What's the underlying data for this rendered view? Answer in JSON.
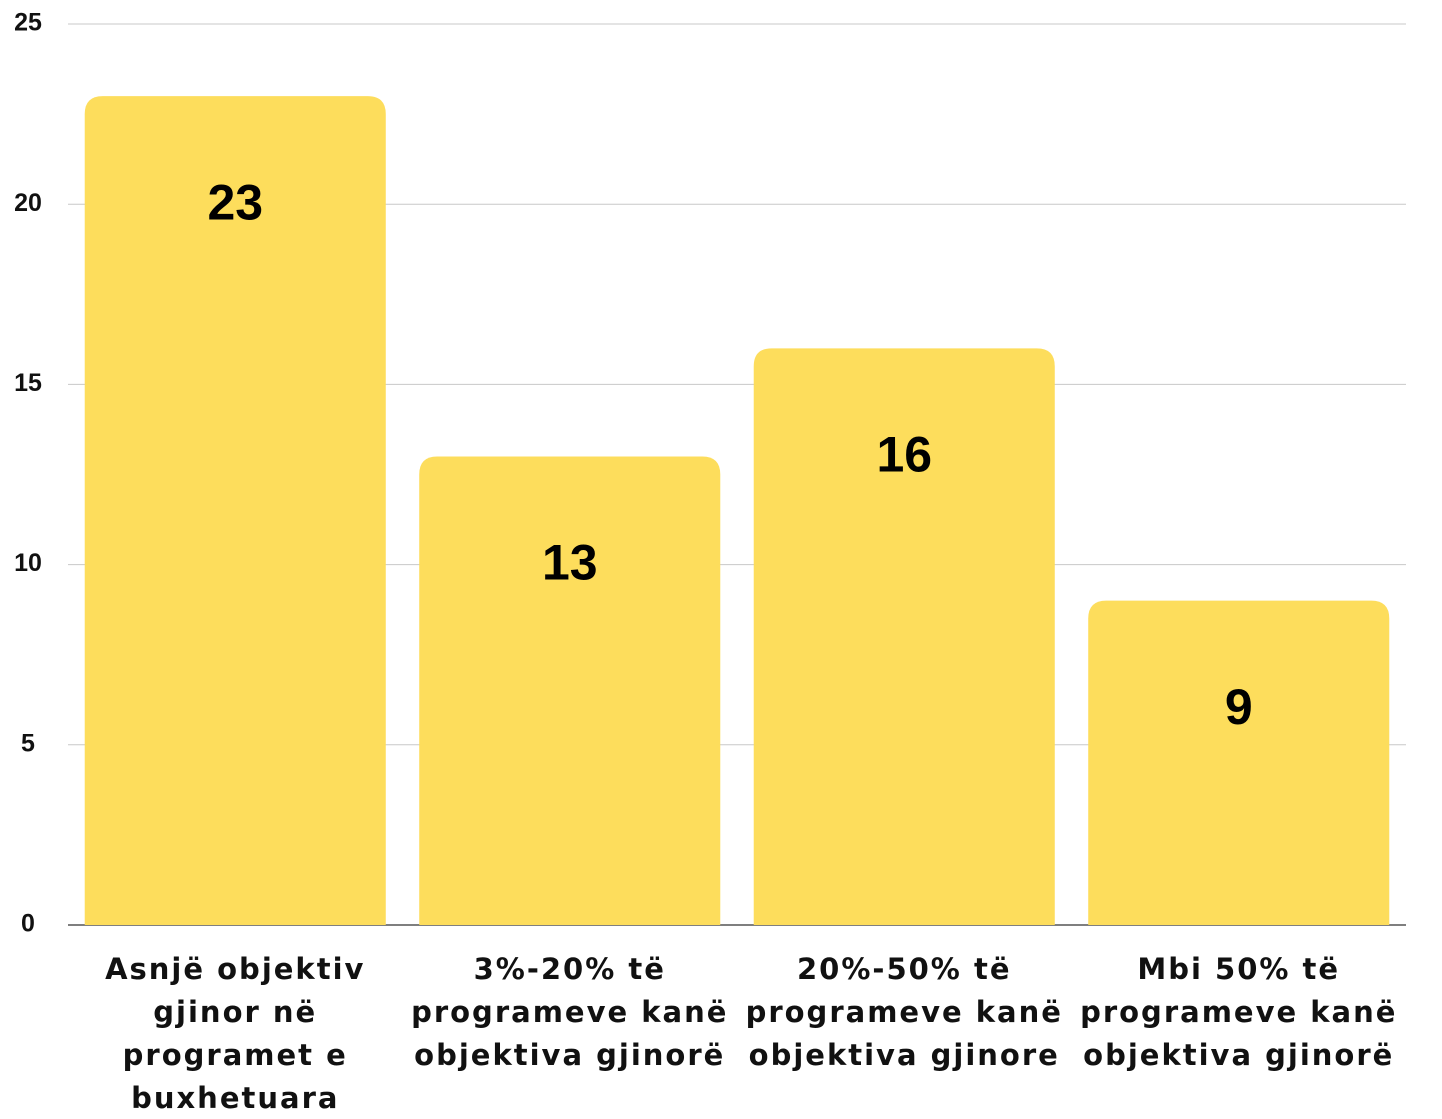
{
  "chart_data": {
    "type": "bar",
    "categories": [
      "Asnjë objektiv gjinor në programet e buxhetuara",
      "3%-20% të programeve kanë objektiva gjinorë",
      "20%-50% të programeve kanë objektiva gjinore",
      "Mbi 50% të programeve kanë objektiva gjinorë"
    ],
    "values": [
      23,
      13,
      16,
      9
    ],
    "color": "#fddd5c",
    "ylim": [
      0,
      25
    ],
    "yticks": [
      0,
      5,
      10,
      15,
      20,
      25
    ],
    "grid": true
  }
}
